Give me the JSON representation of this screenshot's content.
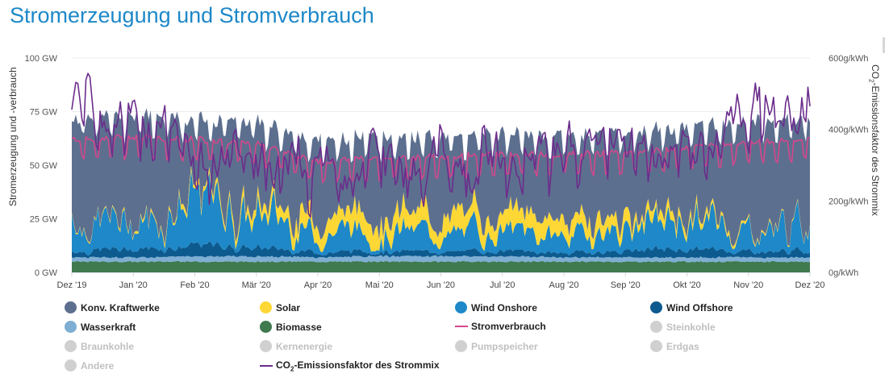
{
  "title": "Stromerzeugung und Stromverbrauch",
  "chart_data": {
    "type": "area",
    "y_axis_left": {
      "label": "Stromerzeugung und -verbrauch",
      "unit": "GW",
      "range": [
        0,
        100
      ],
      "ticks": [
        "0 GW",
        "25 GW",
        "50 GW",
        "75 GW",
        "100 GW"
      ]
    },
    "y_axis_right": {
      "label_pre": "CO",
      "label_sub": "2",
      "label_post": "-Emissionsfaktor des Strommix",
      "unit": "g/kWh",
      "range": [
        0,
        600
      ],
      "ticks": [
        "0g/kWh",
        "200g/kWh",
        "400g/kWh",
        "600g/kWh"
      ]
    },
    "x_axis": {
      "labels": [
        "Dez '19",
        "Jan '20",
        "Feb '20",
        "Mär '20",
        "Apr '20",
        "Mai '20",
        "Jun '20",
        "Jul '20",
        "Aug '20",
        "Sep '20",
        "Okt '20",
        "Nov '20",
        "Dez '20"
      ]
    },
    "series": [
      {
        "name": "Konv. Kraftwerke",
        "color": "#5d6f8f",
        "enabled": true,
        "kind": "area"
      },
      {
        "name": "Solar",
        "color": "#fdd835",
        "enabled": true,
        "kind": "area"
      },
      {
        "name": "Wind Onshore",
        "color": "#1e88c8",
        "enabled": true,
        "kind": "area"
      },
      {
        "name": "Wind Offshore",
        "color": "#0d5a8f",
        "enabled": true,
        "kind": "area"
      },
      {
        "name": "Wasserkraft",
        "color": "#7eaed3",
        "enabled": true,
        "kind": "area"
      },
      {
        "name": "Biomasse",
        "color": "#3f7a4f",
        "enabled": true,
        "kind": "area"
      },
      {
        "name": "Stromverbrauch",
        "color": "#d4478c",
        "enabled": true,
        "kind": "line"
      },
      {
        "name": "Steinkohle",
        "color": "#c8c8c8",
        "enabled": false,
        "kind": "area"
      },
      {
        "name": "Braunkohle",
        "color": "#c8c8c8",
        "enabled": false,
        "kind": "area"
      },
      {
        "name": "Kernenergie",
        "color": "#c8c8c8",
        "enabled": false,
        "kind": "area"
      },
      {
        "name": "Pumpspeicher",
        "color": "#c8c8c8",
        "enabled": false,
        "kind": "area"
      },
      {
        "name": "Erdgas",
        "color": "#c8c8c8",
        "enabled": false,
        "kind": "area"
      },
      {
        "name": "Andere",
        "color": "#c8c8c8",
        "enabled": false,
        "kind": "area"
      },
      {
        "name": "CO2-Emissionsfaktor des Strommix",
        "color": "#6b2d8c",
        "enabled": true,
        "kind": "line",
        "axis": "right"
      }
    ],
    "monthly_approx": {
      "months": [
        "Dez '19",
        "Jan '20",
        "Feb '20",
        "Mär '20",
        "Apr '20",
        "Mai '20",
        "Jun '20",
        "Jul '20",
        "Aug '20",
        "Sep '20",
        "Okt '20",
        "Nov '20",
        "Dez '20"
      ],
      "Biomasse_GW": [
        5,
        5,
        5,
        5,
        5,
        5,
        5,
        5,
        5,
        5,
        5,
        5,
        5
      ],
      "Wasserkraft_GW": [
        2,
        2,
        2.5,
        2.5,
        2,
        2.5,
        2.5,
        2.5,
        2,
        2,
        2,
        2,
        2
      ],
      "Wind_Offshore_GW": [
        3,
        4,
        5,
        4,
        2.5,
        2.5,
        2,
        2.5,
        2,
        3,
        4,
        3,
        3
      ],
      "Wind_Onshore_GW": [
        15,
        12,
        22,
        17,
        9,
        10,
        8,
        9,
        8,
        10,
        14,
        10,
        14
      ],
      "Solar_GW": [
        0.5,
        1,
        2,
        4,
        8,
        9,
        8,
        9,
        8,
        5,
        3,
        1,
        0.5
      ],
      "Konv_Kraftwerke_GW": [
        38,
        42,
        30,
        30,
        27,
        27,
        30,
        28,
        30,
        33,
        34,
        40,
        40
      ],
      "Stromverbrauch_GW": [
        62,
        63,
        62,
        60,
        52,
        53,
        54,
        55,
        55,
        56,
        58,
        61,
        62
      ],
      "CO2_g_per_kWh": [
        470,
        420,
        340,
        330,
        280,
        290,
        330,
        320,
        360,
        370,
        340,
        440,
        460
      ]
    }
  }
}
